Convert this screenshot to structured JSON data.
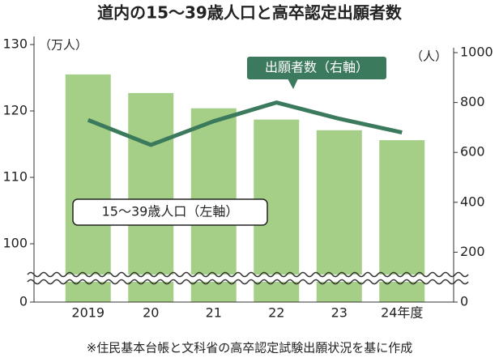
{
  "chart_data": {
    "type": "bar-line",
    "title": "道内の15～39歳人口と高卒認定出願者数",
    "ylabel": "（万人）",
    "y2label": "（人）",
    "categories": [
      "2019",
      "20",
      "21",
      "22",
      "23",
      "24年度"
    ],
    "series": [
      {
        "name": "15～39歳人口（左軸）",
        "type": "bar",
        "color": "#a5cf86",
        "values": [
          125.5,
          122.7,
          120.4,
          118.7,
          117.1,
          115.6
        ]
      },
      {
        "name": "出願者数（右軸）",
        "type": "line",
        "axis": "y2",
        "color": "#3b7a5c",
        "values": [
          730,
          630,
          725,
          800,
          735,
          680
        ]
      }
    ],
    "ylim": [
      0,
      130
    ],
    "yticks": [
      0,
      100,
      110,
      120,
      130
    ],
    "axis_break": true,
    "y2lim": [
      0,
      1000
    ],
    "y2ticks": [
      0,
      200,
      400,
      600,
      800,
      1000
    ],
    "note": "※住民基本台帳と文科省の高卒認定試験出願状況を基に作成"
  }
}
